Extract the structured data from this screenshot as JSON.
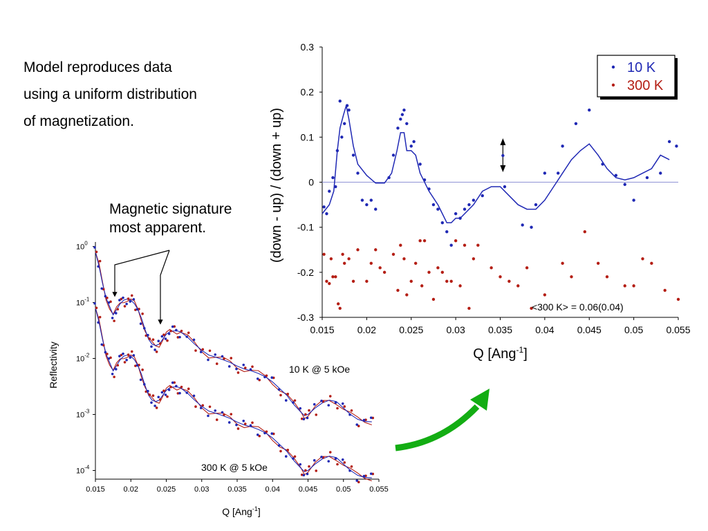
{
  "text": {
    "intro_line1": "Model reproduces data",
    "intro_line2": "using a uniform distribution",
    "intro_line3": "of magnetization.",
    "signature_line1": "Magnetic signature",
    "signature_line2": "most apparent."
  },
  "colors": {
    "blue": "#1f28b4",
    "red": "#b41e14",
    "green_arrow": "#13ad13",
    "zero_line": "#8f93d6"
  },
  "chart_data": [
    {
      "type": "scatter",
      "xlabel": "Q [Ang",
      "xlabel_sup": "-1",
      "ylabel": "(down - up) / (down + up)",
      "xlim": [
        0.015,
        0.055
      ],
      "ylim": [
        -0.3,
        0.3
      ],
      "x_ticks": [
        "0.015",
        "0.02",
        "0.025",
        "0.03",
        "0.035",
        "0.04",
        "0.045",
        "0.05",
        "0.055"
      ],
      "y_ticks": [
        "-0.3",
        "-0.2",
        "-0.1",
        "0",
        "0.1",
        "0.2",
        "0.3"
      ],
      "legend": {
        "position": "top-right",
        "entries": [
          "10 K",
          "300 K"
        ]
      },
      "annotation": "<300 K> = 0.06(0.04)",
      "series": [
        {
          "name": "10 K",
          "color": "#1f28b4",
          "points": [
            [
              0.0152,
              -0.055
            ],
            [
              0.0155,
              -0.07
            ],
            [
              0.0158,
              -0.02
            ],
            [
              0.0162,
              0.01
            ],
            [
              0.0165,
              -0.01
            ],
            [
              0.0167,
              0.07
            ],
            [
              0.017,
              0.18
            ],
            [
              0.0172,
              0.1
            ],
            [
              0.0175,
              0.13
            ],
            [
              0.0178,
              0.17
            ],
            [
              0.018,
              0.16
            ],
            [
              0.0185,
              0.06
            ],
            [
              0.019,
              0.02
            ],
            [
              0.0195,
              -0.04
            ],
            [
              0.02,
              -0.05
            ],
            [
              0.0205,
              -0.04
            ],
            [
              0.021,
              -0.06
            ],
            [
              0.0225,
              0.01
            ],
            [
              0.023,
              0.06
            ],
            [
              0.0235,
              0.12
            ],
            [
              0.0238,
              0.14
            ],
            [
              0.024,
              0.15
            ],
            [
              0.0242,
              0.16
            ],
            [
              0.0245,
              0.13
            ],
            [
              0.025,
              0.08
            ],
            [
              0.0253,
              0.09
            ],
            [
              0.026,
              0.04
            ],
            [
              0.0265,
              0.005
            ],
            [
              0.027,
              -0.015
            ],
            [
              0.0275,
              -0.05
            ],
            [
              0.028,
              -0.06
            ],
            [
              0.0285,
              -0.09
            ],
            [
              0.029,
              -0.11
            ],
            [
              0.0295,
              -0.14
            ],
            [
              0.03,
              -0.07
            ],
            [
              0.0305,
              -0.08
            ],
            [
              0.031,
              -0.06
            ],
            [
              0.0315,
              -0.05
            ],
            [
              0.032,
              -0.04
            ],
            [
              0.033,
              -0.03
            ],
            [
              0.0355,
              -0.01
            ],
            [
              0.0375,
              -0.095
            ],
            [
              0.0385,
              -0.1
            ],
            [
              0.039,
              -0.05
            ],
            [
              0.04,
              0.02
            ],
            [
              0.0415,
              0.02
            ],
            [
              0.042,
              0.08
            ],
            [
              0.0435,
              0.13
            ],
            [
              0.045,
              0.16
            ],
            [
              0.0465,
              0.04
            ],
            [
              0.048,
              0.015
            ],
            [
              0.049,
              -0.005
            ],
            [
              0.05,
              -0.04
            ],
            [
              0.0515,
              0.01
            ],
            [
              0.053,
              0.02
            ],
            [
              0.054,
              0.09
            ],
            [
              0.0548,
              0.08
            ]
          ],
          "model": [
            [
              0.015,
              -0.07
            ],
            [
              0.0158,
              -0.05
            ],
            [
              0.0163,
              -0.02
            ],
            [
              0.0167,
              0.07
            ],
            [
              0.017,
              0.12
            ],
            [
              0.0174,
              0.15
            ],
            [
              0.0177,
              0.17
            ],
            [
              0.018,
              0.14
            ],
            [
              0.0185,
              0.08
            ],
            [
              0.019,
              0.04
            ],
            [
              0.02,
              0.015
            ],
            [
              0.021,
              -0.002
            ],
            [
              0.022,
              -0.002
            ],
            [
              0.0228,
              0.02
            ],
            [
              0.0234,
              0.07
            ],
            [
              0.0238,
              0.11
            ],
            [
              0.0242,
              0.11
            ],
            [
              0.0245,
              0.07
            ],
            [
              0.025,
              0.07
            ],
            [
              0.0255,
              0.06
            ],
            [
              0.026,
              0.02
            ],
            [
              0.027,
              -0.02
            ],
            [
              0.028,
              -0.05
            ],
            [
              0.029,
              -0.09
            ],
            [
              0.0295,
              -0.09
            ],
            [
              0.03,
              -0.08
            ],
            [
              0.0305,
              -0.08
            ],
            [
              0.031,
              -0.07
            ],
            [
              0.032,
              -0.05
            ],
            [
              0.033,
              -0.02
            ],
            [
              0.034,
              -0.01
            ],
            [
              0.035,
              -0.01
            ],
            [
              0.036,
              -0.03
            ],
            [
              0.037,
              -0.05
            ],
            [
              0.038,
              -0.06
            ],
            [
              0.039,
              -0.06
            ],
            [
              0.04,
              -0.04
            ],
            [
              0.041,
              -0.01
            ],
            [
              0.042,
              0.02
            ],
            [
              0.043,
              0.05
            ],
            [
              0.044,
              0.07
            ],
            [
              0.045,
              0.085
            ],
            [
              0.046,
              0.06
            ],
            [
              0.047,
              0.03
            ],
            [
              0.048,
              0.01
            ],
            [
              0.049,
              0.005
            ],
            [
              0.05,
              0.01
            ],
            [
              0.051,
              0.02
            ],
            [
              0.052,
              0.03
            ],
            [
              0.053,
              0.06
            ],
            [
              0.054,
              0.05
            ]
          ]
        },
        {
          "name": "300 K",
          "color": "#b41e14",
          "points": [
            [
              0.0152,
              -0.16
            ],
            [
              0.0155,
              -0.22
            ],
            [
              0.0158,
              -0.225
            ],
            [
              0.016,
              -0.17
            ],
            [
              0.0162,
              -0.21
            ],
            [
              0.0165,
              -0.21
            ],
            [
              0.0168,
              -0.27
            ],
            [
              0.017,
              -0.28
            ],
            [
              0.0173,
              -0.16
            ],
            [
              0.0175,
              -0.18
            ],
            [
              0.018,
              -0.17
            ],
            [
              0.0185,
              -0.22
            ],
            [
              0.019,
              -0.15
            ],
            [
              0.02,
              -0.22
            ],
            [
              0.0205,
              -0.18
            ],
            [
              0.021,
              -0.15
            ],
            [
              0.0215,
              -0.19
            ],
            [
              0.022,
              -0.2
            ],
            [
              0.023,
              -0.16
            ],
            [
              0.0235,
              -0.24
            ],
            [
              0.0238,
              -0.14
            ],
            [
              0.0242,
              -0.17
            ],
            [
              0.0245,
              -0.25
            ],
            [
              0.025,
              -0.22
            ],
            [
              0.0255,
              -0.18
            ],
            [
              0.026,
              -0.13
            ],
            [
              0.0262,
              -0.23
            ],
            [
              0.0265,
              -0.13
            ],
            [
              0.027,
              -0.2
            ],
            [
              0.0275,
              -0.26
            ],
            [
              0.028,
              -0.19
            ],
            [
              0.0285,
              -0.2
            ],
            [
              0.029,
              -0.22
            ],
            [
              0.0295,
              -0.22
            ],
            [
              0.03,
              -0.13
            ],
            [
              0.0305,
              -0.23
            ],
            [
              0.031,
              -0.14
            ],
            [
              0.0315,
              -0.28
            ],
            [
              0.032,
              -0.17
            ],
            [
              0.0325,
              -0.14
            ],
            [
              0.034,
              -0.19
            ],
            [
              0.035,
              -0.21
            ],
            [
              0.036,
              -0.22
            ],
            [
              0.037,
              -0.23
            ],
            [
              0.038,
              -0.19
            ],
            [
              0.0385,
              -0.28
            ],
            [
              0.04,
              -0.25
            ],
            [
              0.042,
              -0.18
            ],
            [
              0.043,
              -0.21
            ],
            [
              0.0445,
              -0.11
            ],
            [
              0.046,
              -0.18
            ],
            [
              0.047,
              -0.21
            ],
            [
              0.049,
              -0.23
            ],
            [
              0.05,
              -0.23
            ],
            [
              0.051,
              -0.17
            ],
            [
              0.052,
              -0.18
            ],
            [
              0.0535,
              -0.24
            ],
            [
              0.055,
              -0.26
            ]
          ]
        }
      ]
    },
    {
      "type": "line",
      "xlabel": "Q [Ang",
      "xlabel_sup": "-1",
      "ylabel": "Reflectivity",
      "scale": "log",
      "xlim": [
        0.015,
        0.055
      ],
      "ylim": [
        7e-05,
        1.2
      ],
      "x_ticks": [
        "0.015",
        "0.02",
        "0.025",
        "0.03",
        "0.035",
        "0.04",
        "0.045",
        "0.05",
        "0.055"
      ],
      "y_ticks": [
        {
          "base": "10",
          "exp": "0",
          "value": 1
        },
        {
          "base": "10",
          "exp": "-1",
          "value": 0.1
        },
        {
          "base": "10",
          "exp": "-2",
          "value": 0.01
        },
        {
          "base": "10",
          "exp": "-3",
          "value": 0.001
        },
        {
          "base": "10",
          "exp": "-4",
          "value": 0.0001
        }
      ],
      "curve_labels": [
        "10 K @ 5 kOe",
        "300 K @ 5 kOe"
      ],
      "upper_curve": [
        [
          0.015,
          0.8
        ],
        [
          0.0155,
          0.45
        ],
        [
          0.016,
          0.22
        ],
        [
          0.0165,
          0.12
        ],
        [
          0.017,
          0.085
        ],
        [
          0.0175,
          0.06
        ],
        [
          0.018,
          0.075
        ],
        [
          0.0185,
          0.095
        ],
        [
          0.019,
          0.11
        ],
        [
          0.0195,
          0.115
        ],
        [
          0.02,
          0.11
        ],
        [
          0.0205,
          0.095
        ],
        [
          0.021,
          0.075
        ],
        [
          0.0215,
          0.052
        ],
        [
          0.022,
          0.033
        ],
        [
          0.0225,
          0.022
        ],
        [
          0.023,
          0.018
        ],
        [
          0.0235,
          0.017
        ],
        [
          0.024,
          0.018
        ],
        [
          0.0245,
          0.022
        ],
        [
          0.025,
          0.027
        ],
        [
          0.0255,
          0.03
        ],
        [
          0.026,
          0.031
        ],
        [
          0.0265,
          0.031
        ],
        [
          0.027,
          0.03
        ],
        [
          0.028,
          0.024
        ],
        [
          0.029,
          0.018
        ],
        [
          0.03,
          0.014
        ],
        [
          0.031,
          0.0115
        ],
        [
          0.032,
          0.0105
        ],
        [
          0.033,
          0.0095
        ],
        [
          0.034,
          0.0085
        ],
        [
          0.035,
          0.0073
        ],
        [
          0.036,
          0.0065
        ],
        [
          0.037,
          0.006
        ],
        [
          0.038,
          0.0054
        ],
        [
          0.039,
          0.0047
        ],
        [
          0.04,
          0.0038
        ],
        [
          0.041,
          0.0029
        ],
        [
          0.042,
          0.0022
        ],
        [
          0.043,
          0.0015
        ],
        [
          0.044,
          0.0011
        ],
        [
          0.0445,
          0.00095
        ],
        [
          0.045,
          0.001
        ],
        [
          0.046,
          0.0013
        ],
        [
          0.047,
          0.0016
        ],
        [
          0.048,
          0.0018
        ],
        [
          0.049,
          0.0017
        ],
        [
          0.05,
          0.0013
        ],
        [
          0.051,
          0.001
        ],
        [
          0.052,
          0.00082
        ],
        [
          0.053,
          0.00075
        ],
        [
          0.054,
          0.00074
        ]
      ],
      "lower_curve": [
        [
          0.015,
          0.08
        ],
        [
          0.0155,
          0.045
        ],
        [
          0.016,
          0.022
        ],
        [
          0.0165,
          0.012
        ],
        [
          0.017,
          0.0085
        ],
        [
          0.0175,
          0.006
        ],
        [
          0.018,
          0.0075
        ],
        [
          0.0185,
          0.0095
        ],
        [
          0.019,
          0.011
        ],
        [
          0.0195,
          0.0115
        ],
        [
          0.02,
          0.011
        ],
        [
          0.0205,
          0.0095
        ],
        [
          0.021,
          0.0075
        ],
        [
          0.0215,
          0.0052
        ],
        [
          0.022,
          0.0033
        ],
        [
          0.0225,
          0.0022
        ],
        [
          0.023,
          0.0018
        ],
        [
          0.0235,
          0.0017
        ],
        [
          0.024,
          0.0018
        ],
        [
          0.0245,
          0.0022
        ],
        [
          0.025,
          0.0027
        ],
        [
          0.0255,
          0.003
        ],
        [
          0.026,
          0.0031
        ],
        [
          0.0265,
          0.0031
        ],
        [
          0.027,
          0.003
        ],
        [
          0.028,
          0.0024
        ],
        [
          0.029,
          0.0018
        ],
        [
          0.03,
          0.0014
        ],
        [
          0.031,
          0.00115
        ],
        [
          0.032,
          0.00105
        ],
        [
          0.033,
          0.00095
        ],
        [
          0.034,
          0.00085
        ],
        [
          0.035,
          0.00073
        ],
        [
          0.036,
          0.00065
        ],
        [
          0.037,
          0.0006
        ],
        [
          0.038,
          0.00054
        ],
        [
          0.039,
          0.00047
        ],
        [
          0.04,
          0.00038
        ],
        [
          0.041,
          0.00029
        ],
        [
          0.042,
          0.00022
        ],
        [
          0.043,
          0.00015
        ],
        [
          0.044,
          0.00011
        ],
        [
          0.0445,
          9.5e-05
        ],
        [
          0.045,
          0.0001
        ],
        [
          0.046,
          0.00013
        ],
        [
          0.047,
          0.00016
        ],
        [
          0.048,
          0.00018
        ],
        [
          0.049,
          0.00017
        ],
        [
          0.05,
          0.00013
        ],
        [
          0.051,
          0.0001
        ],
        [
          0.052,
          8.2e-05
        ],
        [
          0.053,
          7.5e-05
        ],
        [
          0.054,
          7.4e-05
        ]
      ]
    }
  ]
}
